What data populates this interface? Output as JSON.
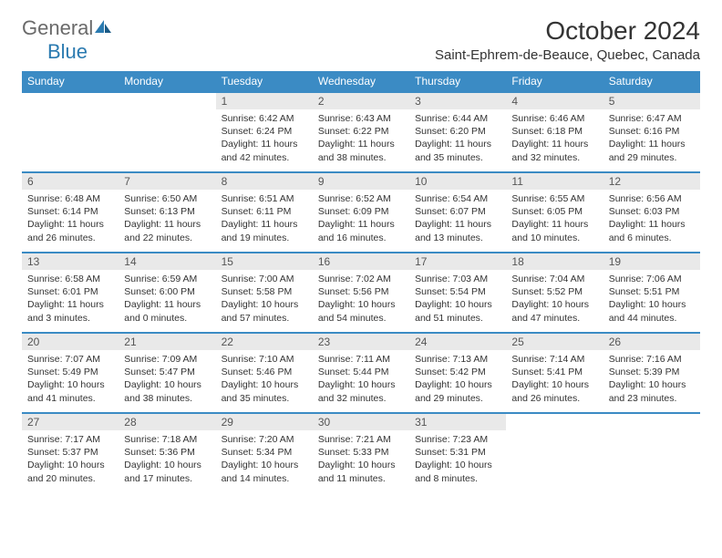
{
  "logo": {
    "text1": "General",
    "text2": "Blue",
    "color1": "#6a6a6a",
    "color2": "#2a7ab0"
  },
  "title": "October 2024",
  "location": "Saint-Ephrem-de-Beauce, Quebec, Canada",
  "header_bg": "#3b8bc4",
  "header_fg": "#ffffff",
  "rule_color": "#3b8bc4",
  "daynum_bg": "#e9e9e9",
  "days": [
    "Sunday",
    "Monday",
    "Tuesday",
    "Wednesday",
    "Thursday",
    "Friday",
    "Saturday"
  ],
  "weeks": [
    [
      {
        "n": "",
        "sunrise": "",
        "sunset": "",
        "daylight": "",
        "empty": true
      },
      {
        "n": "",
        "sunrise": "",
        "sunset": "",
        "daylight": "",
        "empty": true
      },
      {
        "n": "1",
        "sunrise": "Sunrise: 6:42 AM",
        "sunset": "Sunset: 6:24 PM",
        "daylight": "Daylight: 11 hours and 42 minutes."
      },
      {
        "n": "2",
        "sunrise": "Sunrise: 6:43 AM",
        "sunset": "Sunset: 6:22 PM",
        "daylight": "Daylight: 11 hours and 38 minutes."
      },
      {
        "n": "3",
        "sunrise": "Sunrise: 6:44 AM",
        "sunset": "Sunset: 6:20 PM",
        "daylight": "Daylight: 11 hours and 35 minutes."
      },
      {
        "n": "4",
        "sunrise": "Sunrise: 6:46 AM",
        "sunset": "Sunset: 6:18 PM",
        "daylight": "Daylight: 11 hours and 32 minutes."
      },
      {
        "n": "5",
        "sunrise": "Sunrise: 6:47 AM",
        "sunset": "Sunset: 6:16 PM",
        "daylight": "Daylight: 11 hours and 29 minutes."
      }
    ],
    [
      {
        "n": "6",
        "sunrise": "Sunrise: 6:48 AM",
        "sunset": "Sunset: 6:14 PM",
        "daylight": "Daylight: 11 hours and 26 minutes."
      },
      {
        "n": "7",
        "sunrise": "Sunrise: 6:50 AM",
        "sunset": "Sunset: 6:13 PM",
        "daylight": "Daylight: 11 hours and 22 minutes."
      },
      {
        "n": "8",
        "sunrise": "Sunrise: 6:51 AM",
        "sunset": "Sunset: 6:11 PM",
        "daylight": "Daylight: 11 hours and 19 minutes."
      },
      {
        "n": "9",
        "sunrise": "Sunrise: 6:52 AM",
        "sunset": "Sunset: 6:09 PM",
        "daylight": "Daylight: 11 hours and 16 minutes."
      },
      {
        "n": "10",
        "sunrise": "Sunrise: 6:54 AM",
        "sunset": "Sunset: 6:07 PM",
        "daylight": "Daylight: 11 hours and 13 minutes."
      },
      {
        "n": "11",
        "sunrise": "Sunrise: 6:55 AM",
        "sunset": "Sunset: 6:05 PM",
        "daylight": "Daylight: 11 hours and 10 minutes."
      },
      {
        "n": "12",
        "sunrise": "Sunrise: 6:56 AM",
        "sunset": "Sunset: 6:03 PM",
        "daylight": "Daylight: 11 hours and 6 minutes."
      }
    ],
    [
      {
        "n": "13",
        "sunrise": "Sunrise: 6:58 AM",
        "sunset": "Sunset: 6:01 PM",
        "daylight": "Daylight: 11 hours and 3 minutes."
      },
      {
        "n": "14",
        "sunrise": "Sunrise: 6:59 AM",
        "sunset": "Sunset: 6:00 PM",
        "daylight": "Daylight: 11 hours and 0 minutes."
      },
      {
        "n": "15",
        "sunrise": "Sunrise: 7:00 AM",
        "sunset": "Sunset: 5:58 PM",
        "daylight": "Daylight: 10 hours and 57 minutes."
      },
      {
        "n": "16",
        "sunrise": "Sunrise: 7:02 AM",
        "sunset": "Sunset: 5:56 PM",
        "daylight": "Daylight: 10 hours and 54 minutes."
      },
      {
        "n": "17",
        "sunrise": "Sunrise: 7:03 AM",
        "sunset": "Sunset: 5:54 PM",
        "daylight": "Daylight: 10 hours and 51 minutes."
      },
      {
        "n": "18",
        "sunrise": "Sunrise: 7:04 AM",
        "sunset": "Sunset: 5:52 PM",
        "daylight": "Daylight: 10 hours and 47 minutes."
      },
      {
        "n": "19",
        "sunrise": "Sunrise: 7:06 AM",
        "sunset": "Sunset: 5:51 PM",
        "daylight": "Daylight: 10 hours and 44 minutes."
      }
    ],
    [
      {
        "n": "20",
        "sunrise": "Sunrise: 7:07 AM",
        "sunset": "Sunset: 5:49 PM",
        "daylight": "Daylight: 10 hours and 41 minutes."
      },
      {
        "n": "21",
        "sunrise": "Sunrise: 7:09 AM",
        "sunset": "Sunset: 5:47 PM",
        "daylight": "Daylight: 10 hours and 38 minutes."
      },
      {
        "n": "22",
        "sunrise": "Sunrise: 7:10 AM",
        "sunset": "Sunset: 5:46 PM",
        "daylight": "Daylight: 10 hours and 35 minutes."
      },
      {
        "n": "23",
        "sunrise": "Sunrise: 7:11 AM",
        "sunset": "Sunset: 5:44 PM",
        "daylight": "Daylight: 10 hours and 32 minutes."
      },
      {
        "n": "24",
        "sunrise": "Sunrise: 7:13 AM",
        "sunset": "Sunset: 5:42 PM",
        "daylight": "Daylight: 10 hours and 29 minutes."
      },
      {
        "n": "25",
        "sunrise": "Sunrise: 7:14 AM",
        "sunset": "Sunset: 5:41 PM",
        "daylight": "Daylight: 10 hours and 26 minutes."
      },
      {
        "n": "26",
        "sunrise": "Sunrise: 7:16 AM",
        "sunset": "Sunset: 5:39 PM",
        "daylight": "Daylight: 10 hours and 23 minutes."
      }
    ],
    [
      {
        "n": "27",
        "sunrise": "Sunrise: 7:17 AM",
        "sunset": "Sunset: 5:37 PM",
        "daylight": "Daylight: 10 hours and 20 minutes."
      },
      {
        "n": "28",
        "sunrise": "Sunrise: 7:18 AM",
        "sunset": "Sunset: 5:36 PM",
        "daylight": "Daylight: 10 hours and 17 minutes."
      },
      {
        "n": "29",
        "sunrise": "Sunrise: 7:20 AM",
        "sunset": "Sunset: 5:34 PM",
        "daylight": "Daylight: 10 hours and 14 minutes."
      },
      {
        "n": "30",
        "sunrise": "Sunrise: 7:21 AM",
        "sunset": "Sunset: 5:33 PM",
        "daylight": "Daylight: 10 hours and 11 minutes."
      },
      {
        "n": "31",
        "sunrise": "Sunrise: 7:23 AM",
        "sunset": "Sunset: 5:31 PM",
        "daylight": "Daylight: 10 hours and 8 minutes."
      },
      {
        "n": "",
        "sunrise": "",
        "sunset": "",
        "daylight": "",
        "empty": true
      },
      {
        "n": "",
        "sunrise": "",
        "sunset": "",
        "daylight": "",
        "empty": true
      }
    ]
  ]
}
